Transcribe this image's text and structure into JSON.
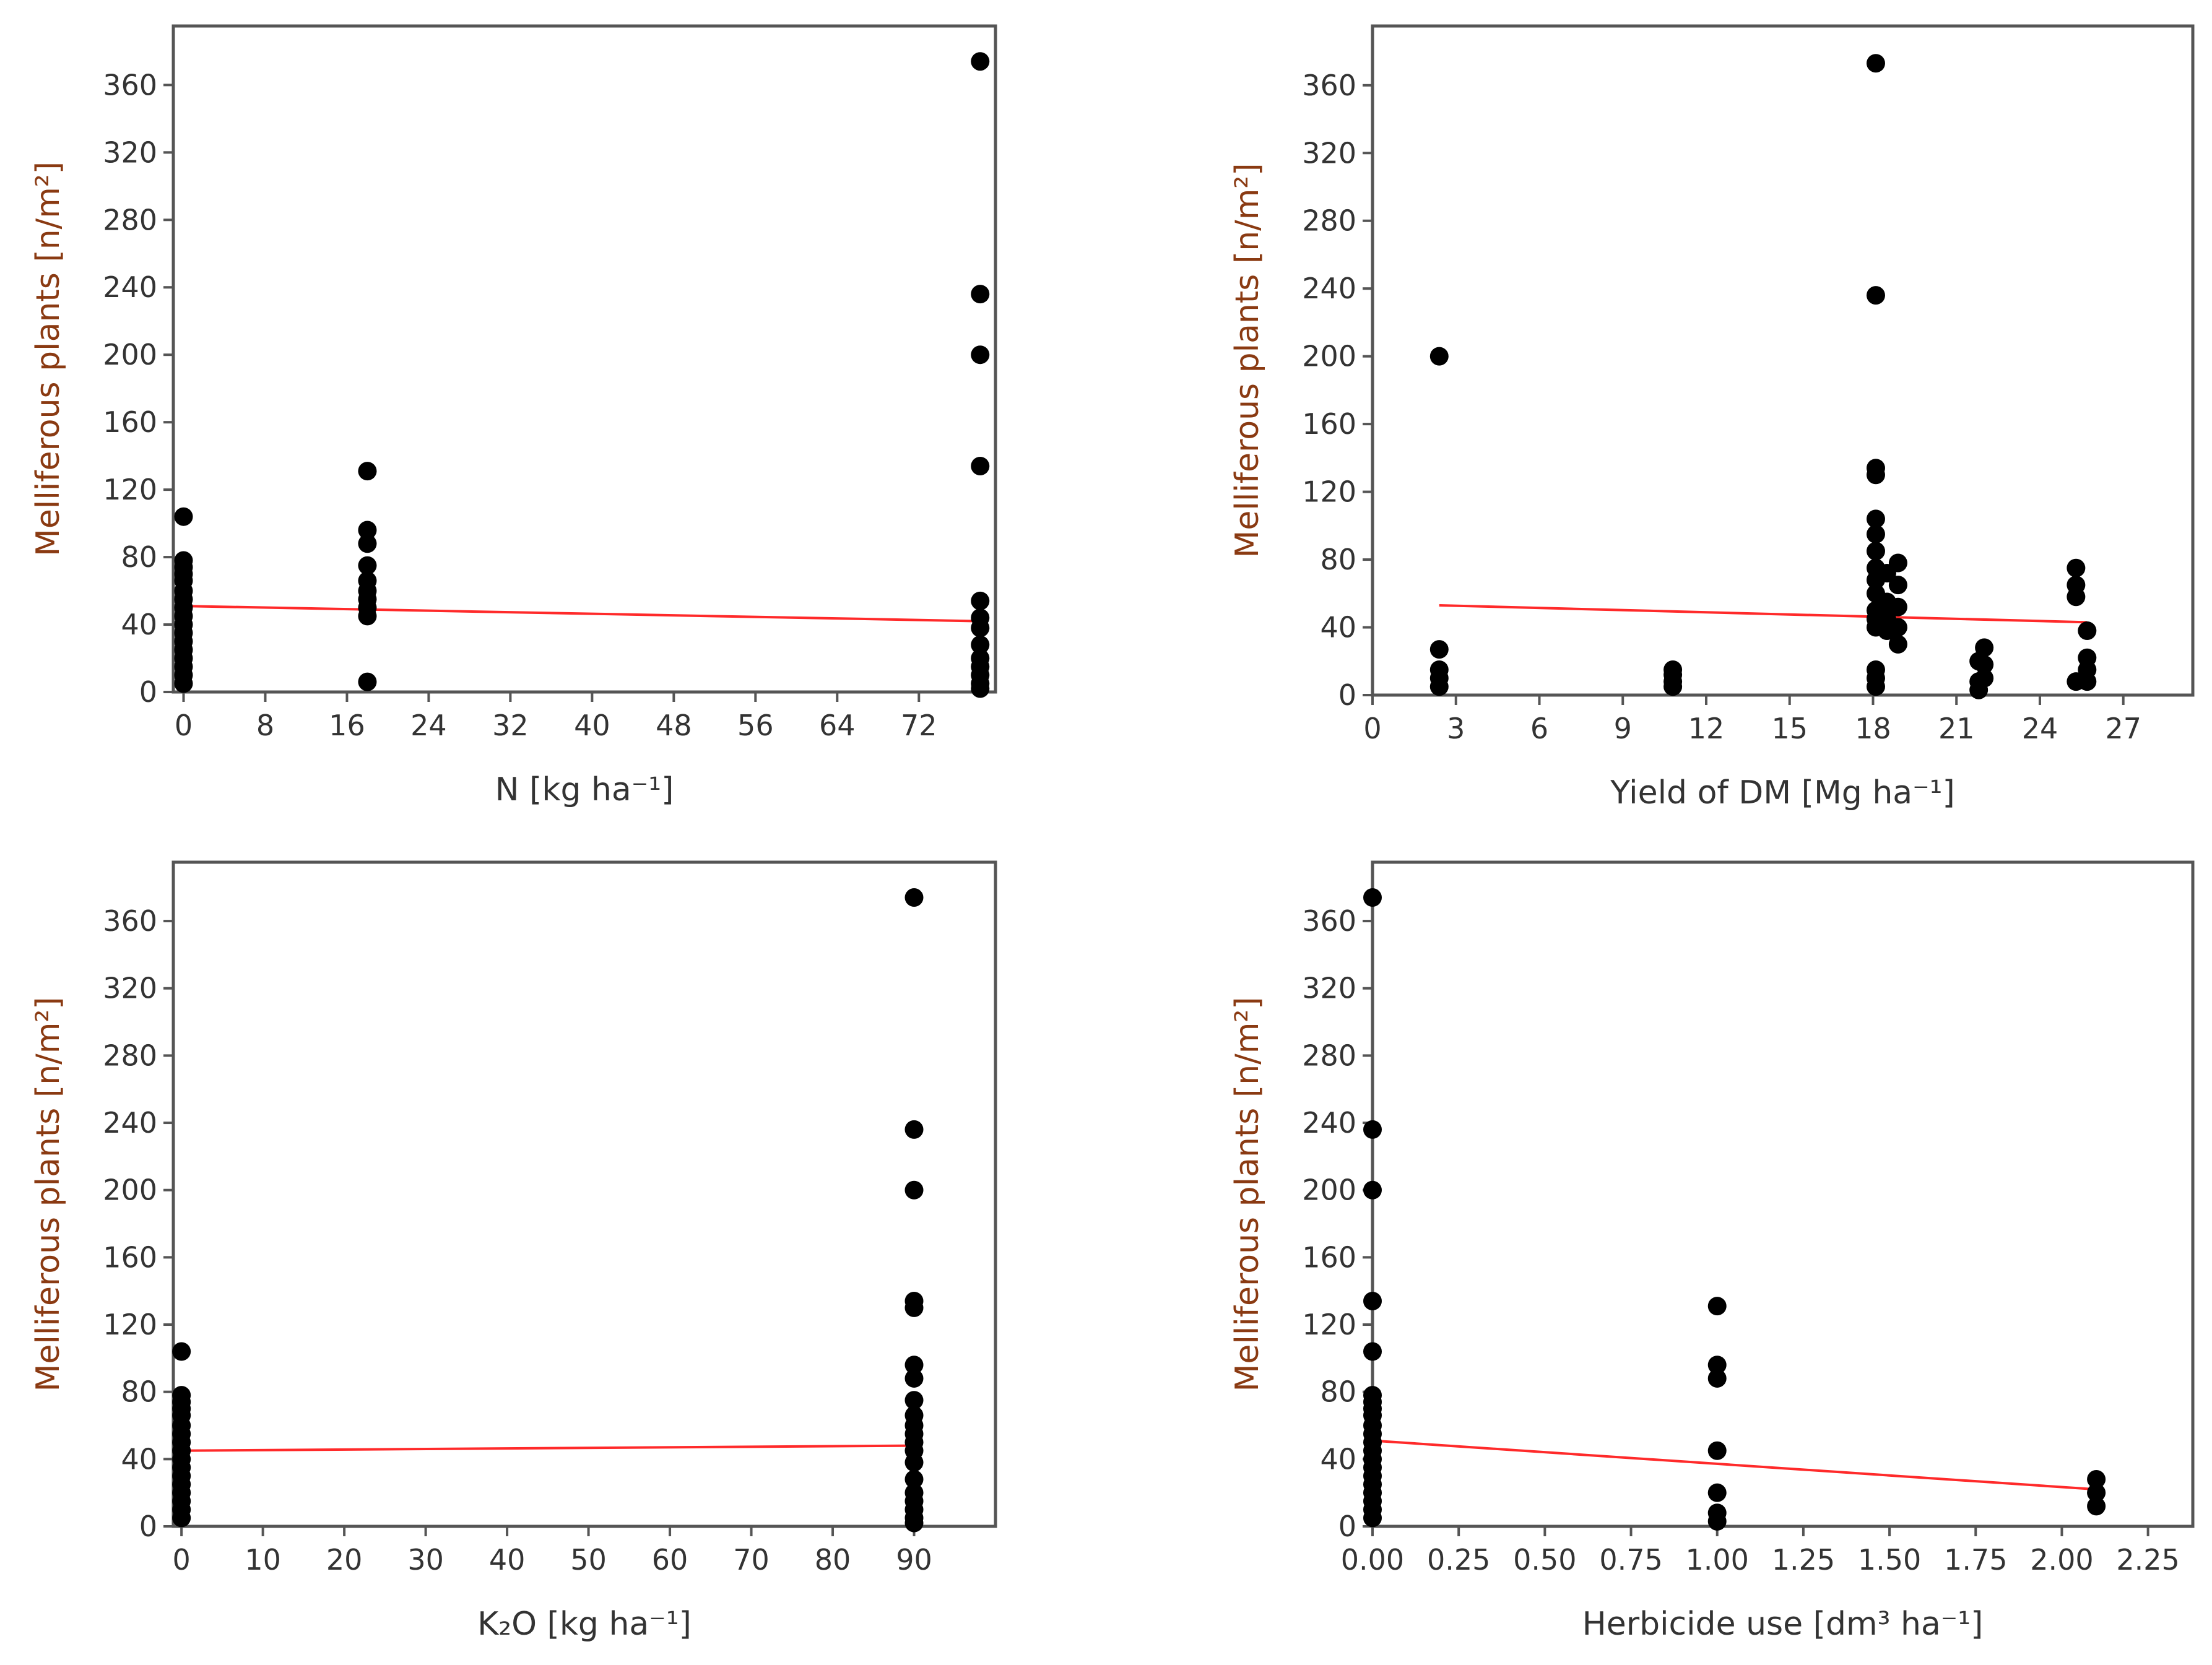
{
  "chart_data": [
    {
      "type": "scatter",
      "title": "",
      "xlabel": "N [kg ha⁻¹]",
      "ylabel": "Melliferous plants [n/m²]",
      "xlim": [
        -1,
        79.5
      ],
      "ylim": [
        0,
        395
      ],
      "x_ticks": [
        0,
        8,
        16,
        24,
        32,
        40,
        48,
        56,
        64,
        72
      ],
      "x_tick_labels": [
        "0",
        "8",
        "16",
        "24",
        "32",
        "40",
        "48",
        "56",
        "64",
        "72"
      ],
      "y_ticks": [
        0,
        40,
        80,
        120,
        160,
        200,
        240,
        280,
        320,
        360
      ],
      "y_tick_labels": [
        "0",
        "40",
        "80",
        "120",
        "160",
        "200",
        "240",
        "280",
        "320",
        "360"
      ],
      "points": [
        [
          0,
          104
        ],
        [
          0,
          78
        ],
        [
          0,
          74
        ],
        [
          0,
          70
        ],
        [
          0,
          66
        ],
        [
          0,
          60
        ],
        [
          0,
          55
        ],
        [
          0,
          50
        ],
        [
          0,
          45
        ],
        [
          0,
          40
        ],
        [
          0,
          35
        ],
        [
          0,
          30
        ],
        [
          0,
          25
        ],
        [
          0,
          20
        ],
        [
          0,
          15
        ],
        [
          0,
          10
        ],
        [
          0,
          5
        ],
        [
          18,
          131
        ],
        [
          18,
          96
        ],
        [
          18,
          88
        ],
        [
          18,
          75
        ],
        [
          18,
          66
        ],
        [
          18,
          60
        ],
        [
          18,
          55
        ],
        [
          18,
          50
        ],
        [
          18,
          45
        ],
        [
          18,
          6
        ],
        [
          78,
          374
        ],
        [
          78,
          236
        ],
        [
          78,
          200
        ],
        [
          78,
          134
        ],
        [
          78,
          54
        ],
        [
          78,
          44
        ],
        [
          78,
          38
        ],
        [
          78,
          28
        ],
        [
          78,
          20
        ],
        [
          78,
          15
        ],
        [
          78,
          10
        ],
        [
          78,
          5
        ],
        [
          78,
          2
        ]
      ],
      "trend_line": {
        "x": [
          0,
          78
        ],
        "y": [
          51,
          42
        ],
        "color": "#ff2a2a"
      }
    },
    {
      "type": "scatter",
      "title": "",
      "xlabel": "Yield of DM [Mg ha⁻¹]",
      "ylabel": "Melliferous plants [n/m²]",
      "xlim": [
        0,
        29.5
      ],
      "ylim": [
        0,
        395
      ],
      "x_ticks": [
        0,
        3,
        6,
        9,
        12,
        15,
        18,
        21,
        24,
        27
      ],
      "x_tick_labels": [
        "0",
        "3",
        "6",
        "9",
        "12",
        "15",
        "18",
        "21",
        "24",
        "27"
      ],
      "y_ticks": [
        0,
        40,
        80,
        120,
        160,
        200,
        240,
        280,
        320,
        360
      ],
      "y_tick_labels": [
        "0",
        "40",
        "80",
        "120",
        "160",
        "200",
        "240",
        "280",
        "320",
        "360"
      ],
      "points": [
        [
          2.4,
          200
        ],
        [
          2.4,
          27
        ],
        [
          2.4,
          15
        ],
        [
          2.4,
          10
        ],
        [
          2.4,
          5
        ],
        [
          10.8,
          15
        ],
        [
          10.8,
          12
        ],
        [
          10.8,
          8
        ],
        [
          10.8,
          5
        ],
        [
          18.1,
          373
        ],
        [
          18.1,
          236
        ],
        [
          18.1,
          134
        ],
        [
          18.1,
          130
        ],
        [
          18.1,
          104
        ],
        [
          18.1,
          95
        ],
        [
          18.1,
          85
        ],
        [
          18.1,
          75
        ],
        [
          18.1,
          68
        ],
        [
          18.1,
          60
        ],
        [
          18.1,
          50
        ],
        [
          18.1,
          45
        ],
        [
          18.1,
          40
        ],
        [
          18.1,
          15
        ],
        [
          18.1,
          10
        ],
        [
          18.1,
          5
        ],
        [
          18.5,
          72
        ],
        [
          18.5,
          55
        ],
        [
          18.5,
          45
        ],
        [
          18.5,
          38
        ],
        [
          18.9,
          78
        ],
        [
          18.9,
          65
        ],
        [
          18.9,
          52
        ],
        [
          18.9,
          40
        ],
        [
          18.9,
          30
        ],
        [
          21.8,
          20
        ],
        [
          21.8,
          8
        ],
        [
          21.8,
          3
        ],
        [
          22.0,
          28
        ],
        [
          22.0,
          18
        ],
        [
          22.0,
          10
        ],
        [
          25.3,
          75
        ],
        [
          25.3,
          65
        ],
        [
          25.3,
          58
        ],
        [
          25.3,
          8
        ],
        [
          25.7,
          38
        ],
        [
          25.7,
          22
        ],
        [
          25.7,
          15
        ],
        [
          25.7,
          8
        ]
      ],
      "trend_line": {
        "x": [
          2.4,
          25.7
        ],
        "y": [
          53,
          43
        ],
        "color": "#ff2a2a"
      }
    },
    {
      "type": "scatter",
      "title": "",
      "xlabel": "K₂O [kg ha⁻¹]",
      "ylabel": "Melliferous plants [n/m²]",
      "xlim": [
        -1,
        100
      ],
      "ylim": [
        0,
        395
      ],
      "x_ticks": [
        0,
        10,
        20,
        30,
        40,
        50,
        60,
        70,
        80,
        90
      ],
      "x_tick_labels": [
        "0",
        "10",
        "20",
        "30",
        "40",
        "50",
        "60",
        "70",
        "80",
        "90"
      ],
      "y_ticks": [
        0,
        40,
        80,
        120,
        160,
        200,
        240,
        280,
        320,
        360
      ],
      "y_tick_labels": [
        "0",
        "40",
        "80",
        "120",
        "160",
        "200",
        "240",
        "280",
        "320",
        "360"
      ],
      "points": [
        [
          0,
          104
        ],
        [
          0,
          78
        ],
        [
          0,
          74
        ],
        [
          0,
          70
        ],
        [
          0,
          66
        ],
        [
          0,
          60
        ],
        [
          0,
          55
        ],
        [
          0,
          50
        ],
        [
          0,
          45
        ],
        [
          0,
          40
        ],
        [
          0,
          35
        ],
        [
          0,
          30
        ],
        [
          0,
          25
        ],
        [
          0,
          20
        ],
        [
          0,
          15
        ],
        [
          0,
          10
        ],
        [
          0,
          5
        ],
        [
          90,
          374
        ],
        [
          90,
          236
        ],
        [
          90,
          200
        ],
        [
          90,
          134
        ],
        [
          90,
          130
        ],
        [
          90,
          96
        ],
        [
          90,
          88
        ],
        [
          90,
          75
        ],
        [
          90,
          66
        ],
        [
          90,
          60
        ],
        [
          90,
          55
        ],
        [
          90,
          50
        ],
        [
          90,
          45
        ],
        [
          90,
          38
        ],
        [
          90,
          28
        ],
        [
          90,
          20
        ],
        [
          90,
          15
        ],
        [
          90,
          10
        ],
        [
          90,
          5
        ],
        [
          90,
          2
        ]
      ],
      "trend_line": {
        "x": [
          0,
          90
        ],
        "y": [
          45,
          48
        ],
        "color": "#ff2a2a"
      }
    },
    {
      "type": "scatter",
      "title": "",
      "xlabel": "Herbicide use [dm³ ha⁻¹]",
      "ylabel": "Melliferous plants [n/m²]",
      "xlim": [
        0,
        2.38
      ],
      "ylim": [
        0,
        395
      ],
      "x_ticks": [
        0,
        0.25,
        0.5,
        0.75,
        1.0,
        1.25,
        1.5,
        1.75,
        2.0,
        2.25
      ],
      "x_tick_labels": [
        "0.00",
        "0.25",
        "0.50",
        "0.75",
        "1.00",
        "1.25",
        "1.50",
        "1.75",
        "2.00",
        "2.25"
      ],
      "y_ticks": [
        0,
        40,
        80,
        120,
        160,
        200,
        240,
        280,
        320,
        360
      ],
      "y_tick_labels": [
        "0",
        "40",
        "80",
        "120",
        "160",
        "200",
        "240",
        "280",
        "320",
        "360"
      ],
      "points": [
        [
          0,
          374
        ],
        [
          0,
          236
        ],
        [
          0,
          200
        ],
        [
          0,
          134
        ],
        [
          0,
          104
        ],
        [
          0,
          78
        ],
        [
          0,
          74
        ],
        [
          0,
          70
        ],
        [
          0,
          66
        ],
        [
          0,
          60
        ],
        [
          0,
          55
        ],
        [
          0,
          50
        ],
        [
          0,
          45
        ],
        [
          0,
          40
        ],
        [
          0,
          35
        ],
        [
          0,
          30
        ],
        [
          0,
          25
        ],
        [
          0,
          20
        ],
        [
          0,
          15
        ],
        [
          0,
          10
        ],
        [
          0,
          5
        ],
        [
          1.0,
          131
        ],
        [
          1.0,
          96
        ],
        [
          1.0,
          88
        ],
        [
          1.0,
          45
        ],
        [
          1.0,
          20
        ],
        [
          1.0,
          8
        ],
        [
          1.0,
          3
        ],
        [
          2.1,
          28
        ],
        [
          2.1,
          20
        ],
        [
          2.1,
          12
        ]
      ],
      "trend_line": {
        "x": [
          0,
          2.1
        ],
        "y": [
          51,
          22
        ],
        "color": "#ff2a2a"
      }
    }
  ]
}
